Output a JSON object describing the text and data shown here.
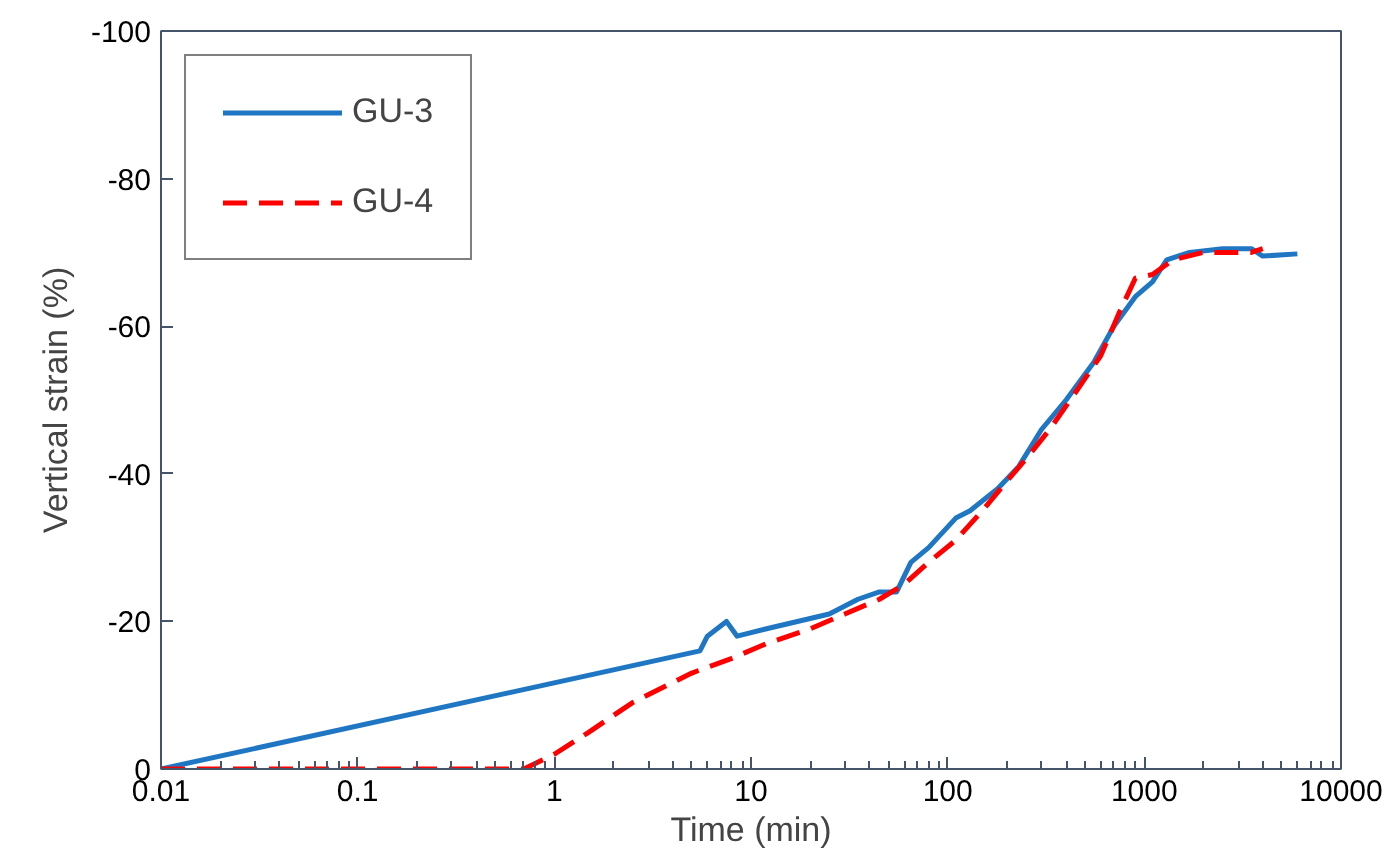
{
  "chart_data": {
    "type": "line",
    "xlabel": "Time (min)",
    "ylabel": "Vertical strain (%)",
    "log": "x",
    "xlim": [
      0.01,
      10000
    ],
    "ylim": [
      0,
      -100
    ],
    "xticks": [
      0.01,
      0.1,
      1,
      10,
      100,
      1000,
      10000
    ],
    "yticks": [
      0,
      -20,
      -40,
      -60,
      -80,
      -100
    ],
    "grid": false,
    "legend": "top left",
    "series": [
      {
        "name": "GU-3",
        "color": "#1f77c4",
        "line_style": "solid",
        "x": [
          0.01,
          5.5,
          6,
          7.5,
          8.5,
          12,
          25,
          35,
          45,
          55,
          65,
          80,
          110,
          130,
          180,
          230,
          300,
          400,
          550,
          700,
          900,
          1100,
          1300,
          1700,
          2500,
          3500,
          4000,
          6000
        ],
        "values": [
          0,
          -16,
          -18,
          -20,
          -18,
          -19,
          -21,
          -23,
          -24,
          -24,
          -28,
          -30,
          -34,
          -35,
          -38,
          -41,
          -46,
          -50,
          -55,
          -60,
          -64,
          -66,
          -69,
          -70,
          -70.5,
          -70.5,
          -69.5,
          -69.8
        ]
      },
      {
        "name": "GU-4",
        "color": "#ff0000",
        "line_style": "dashed",
        "x": [
          0.01,
          0.7,
          1,
          1.5,
          2.5,
          5,
          8,
          12,
          20,
          30,
          45,
          60,
          80,
          110,
          150,
          200,
          250,
          330,
          420,
          600,
          750,
          900,
          1100,
          1400,
          2000,
          3500,
          4000
        ],
        "values": [
          0,
          0,
          -2,
          -5,
          -9,
          -13,
          -15,
          -17,
          -19,
          -21,
          -23,
          -25,
          -28,
          -31,
          -35,
          -39,
          -42,
          -46,
          -50,
          -56,
          -62,
          -66.5,
          -67,
          -69,
          -70,
          -70,
          -70.5
        ]
      }
    ]
  }
}
